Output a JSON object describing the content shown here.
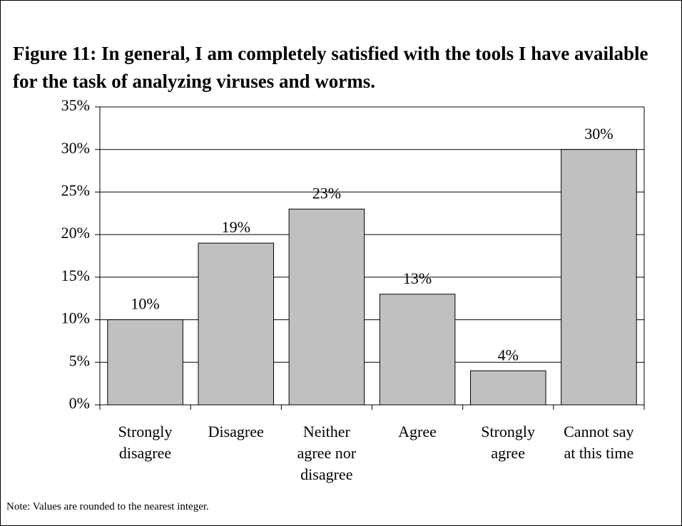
{
  "chart_data": {
    "type": "bar",
    "title": "Figure 11: In general, I am completely satisfied with the tools I have available for the task of analyzing viruses and worms.",
    "categories": [
      "Strongly\ndisagree",
      "Disagree",
      "Neither\nagree nor\ndisagree",
      "Agree",
      "Strongly\nagree",
      "Cannot say\nat this time"
    ],
    "values": [
      10,
      19,
      23,
      13,
      4,
      30
    ],
    "value_labels": [
      "10%",
      "19%",
      "23%",
      "13%",
      "4%",
      "30%"
    ],
    "color": "#c0c0c0",
    "ylim": [
      0,
      35
    ],
    "yticks": [
      {
        "value": 0,
        "label": "0%"
      },
      {
        "value": 5,
        "label": "5%"
      },
      {
        "value": 10,
        "label": "10%"
      },
      {
        "value": 15,
        "label": "15%"
      },
      {
        "value": 20,
        "label": "20%"
      },
      {
        "value": 25,
        "label": "25%"
      },
      {
        "value": 30,
        "label": "30%"
      },
      {
        "value": 35,
        "label": "35%"
      }
    ],
    "grid": true,
    "note": "Note: Values are rounded to the nearest integer."
  }
}
